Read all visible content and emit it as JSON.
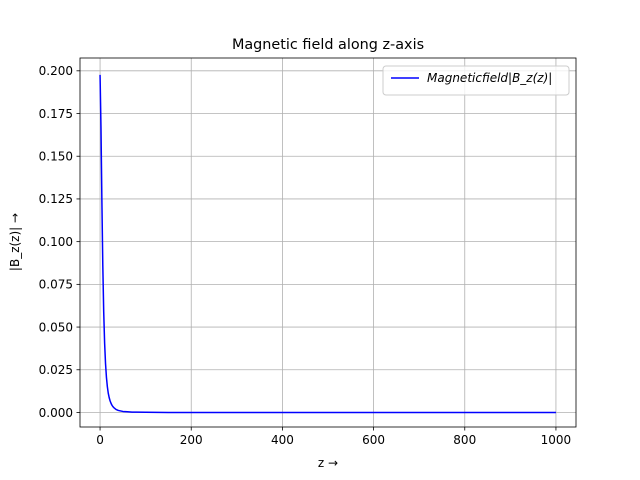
{
  "chart_data": {
    "type": "line",
    "title": "Magnetic field along z-axis",
    "xlabel": "z  →",
    "ylabel": "|B_z(z)| →",
    "xlim": [
      -44,
      1044
    ],
    "ylim": [
      -0.0085,
      0.2075
    ],
    "xticks": [
      0,
      200,
      400,
      600,
      800,
      1000
    ],
    "yticks": [
      0.0,
      0.025,
      0.05,
      0.075,
      0.1,
      0.125,
      0.15,
      0.175,
      0.2
    ],
    "xtick_labels": [
      "0",
      "200",
      "400",
      "600",
      "800",
      "1000"
    ],
    "ytick_labels": [
      "0.000",
      "0.025",
      "0.050",
      "0.075",
      "0.100",
      "0.125",
      "0.150",
      "0.175",
      "0.200"
    ],
    "grid": true,
    "legend_position": "top-right",
    "series": [
      {
        "name": "Magneticfield|B_z(z)|",
        "color": "#0000ff",
        "x": [
          0,
          2,
          4,
          6,
          8,
          10,
          12,
          14,
          16,
          18,
          20,
          22,
          24,
          26,
          28,
          30,
          35,
          40,
          45,
          50,
          60,
          70,
          80,
          100,
          150,
          200,
          300,
          400,
          500,
          600,
          700,
          800,
          900,
          1000
        ],
        "y": [
          0.1976,
          0.1672,
          0.1242,
          0.0863,
          0.0589,
          0.0406,
          0.0286,
          0.0206,
          0.0151,
          0.0113,
          0.0087,
          0.0068,
          0.0054,
          0.0043,
          0.0035,
          0.0029,
          0.0018,
          0.0012,
          0.0009,
          0.0006,
          0.0004,
          0.0002,
          0.0002,
          0.0001,
          0.0,
          0.0,
          0.0,
          0.0,
          0.0,
          0.0,
          0.0,
          0.0,
          0.0,
          0.0
        ]
      }
    ]
  }
}
